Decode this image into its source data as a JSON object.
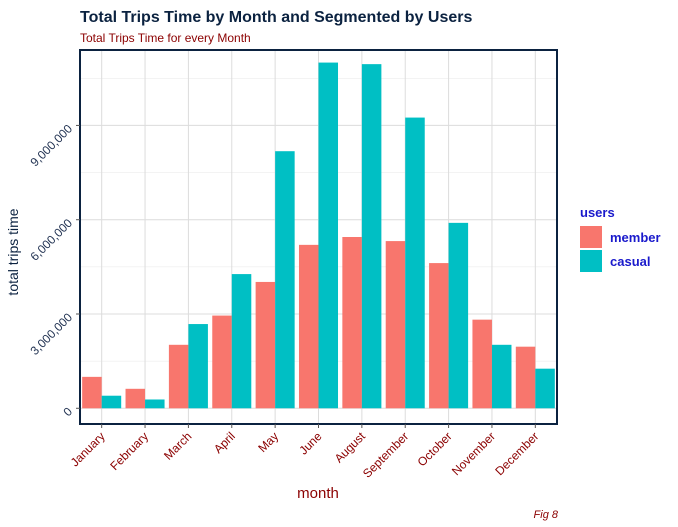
{
  "chart_data": {
    "type": "bar",
    "title": "Total Trips Time by Month and Segmented by Users",
    "subtitle": "Total Trips Time for every Month",
    "xlabel": "month",
    "ylabel": "total trips time",
    "caption": "Fig 8",
    "categories": [
      "January",
      "February",
      "March",
      "April",
      "May",
      "June",
      "August",
      "September",
      "October",
      "November",
      "December"
    ],
    "series": [
      {
        "name": "member",
        "color": "#F8766D",
        "values": [
          1000000,
          620000,
          2020000,
          2950000,
          4020000,
          5200000,
          5450000,
          5320000,
          4620000,
          2820000,
          1960000
        ]
      },
      {
        "name": "casual",
        "color": "#00BFC4",
        "values": [
          400000,
          280000,
          2680000,
          4270000,
          8180000,
          11000000,
          10950000,
          9250000,
          5900000,
          2020000,
          1260000
        ]
      }
    ],
    "ylim": [
      -500000,
      11400000
    ],
    "yticks": [
      0,
      3000000,
      6000000,
      9000000
    ],
    "ytick_labels": [
      "0",
      "3,000,000",
      "6,000,000",
      "9,000,000"
    ],
    "grid": true,
    "legend": {
      "title": "users",
      "position": "right",
      "entries": [
        "member",
        "casual"
      ]
    }
  }
}
